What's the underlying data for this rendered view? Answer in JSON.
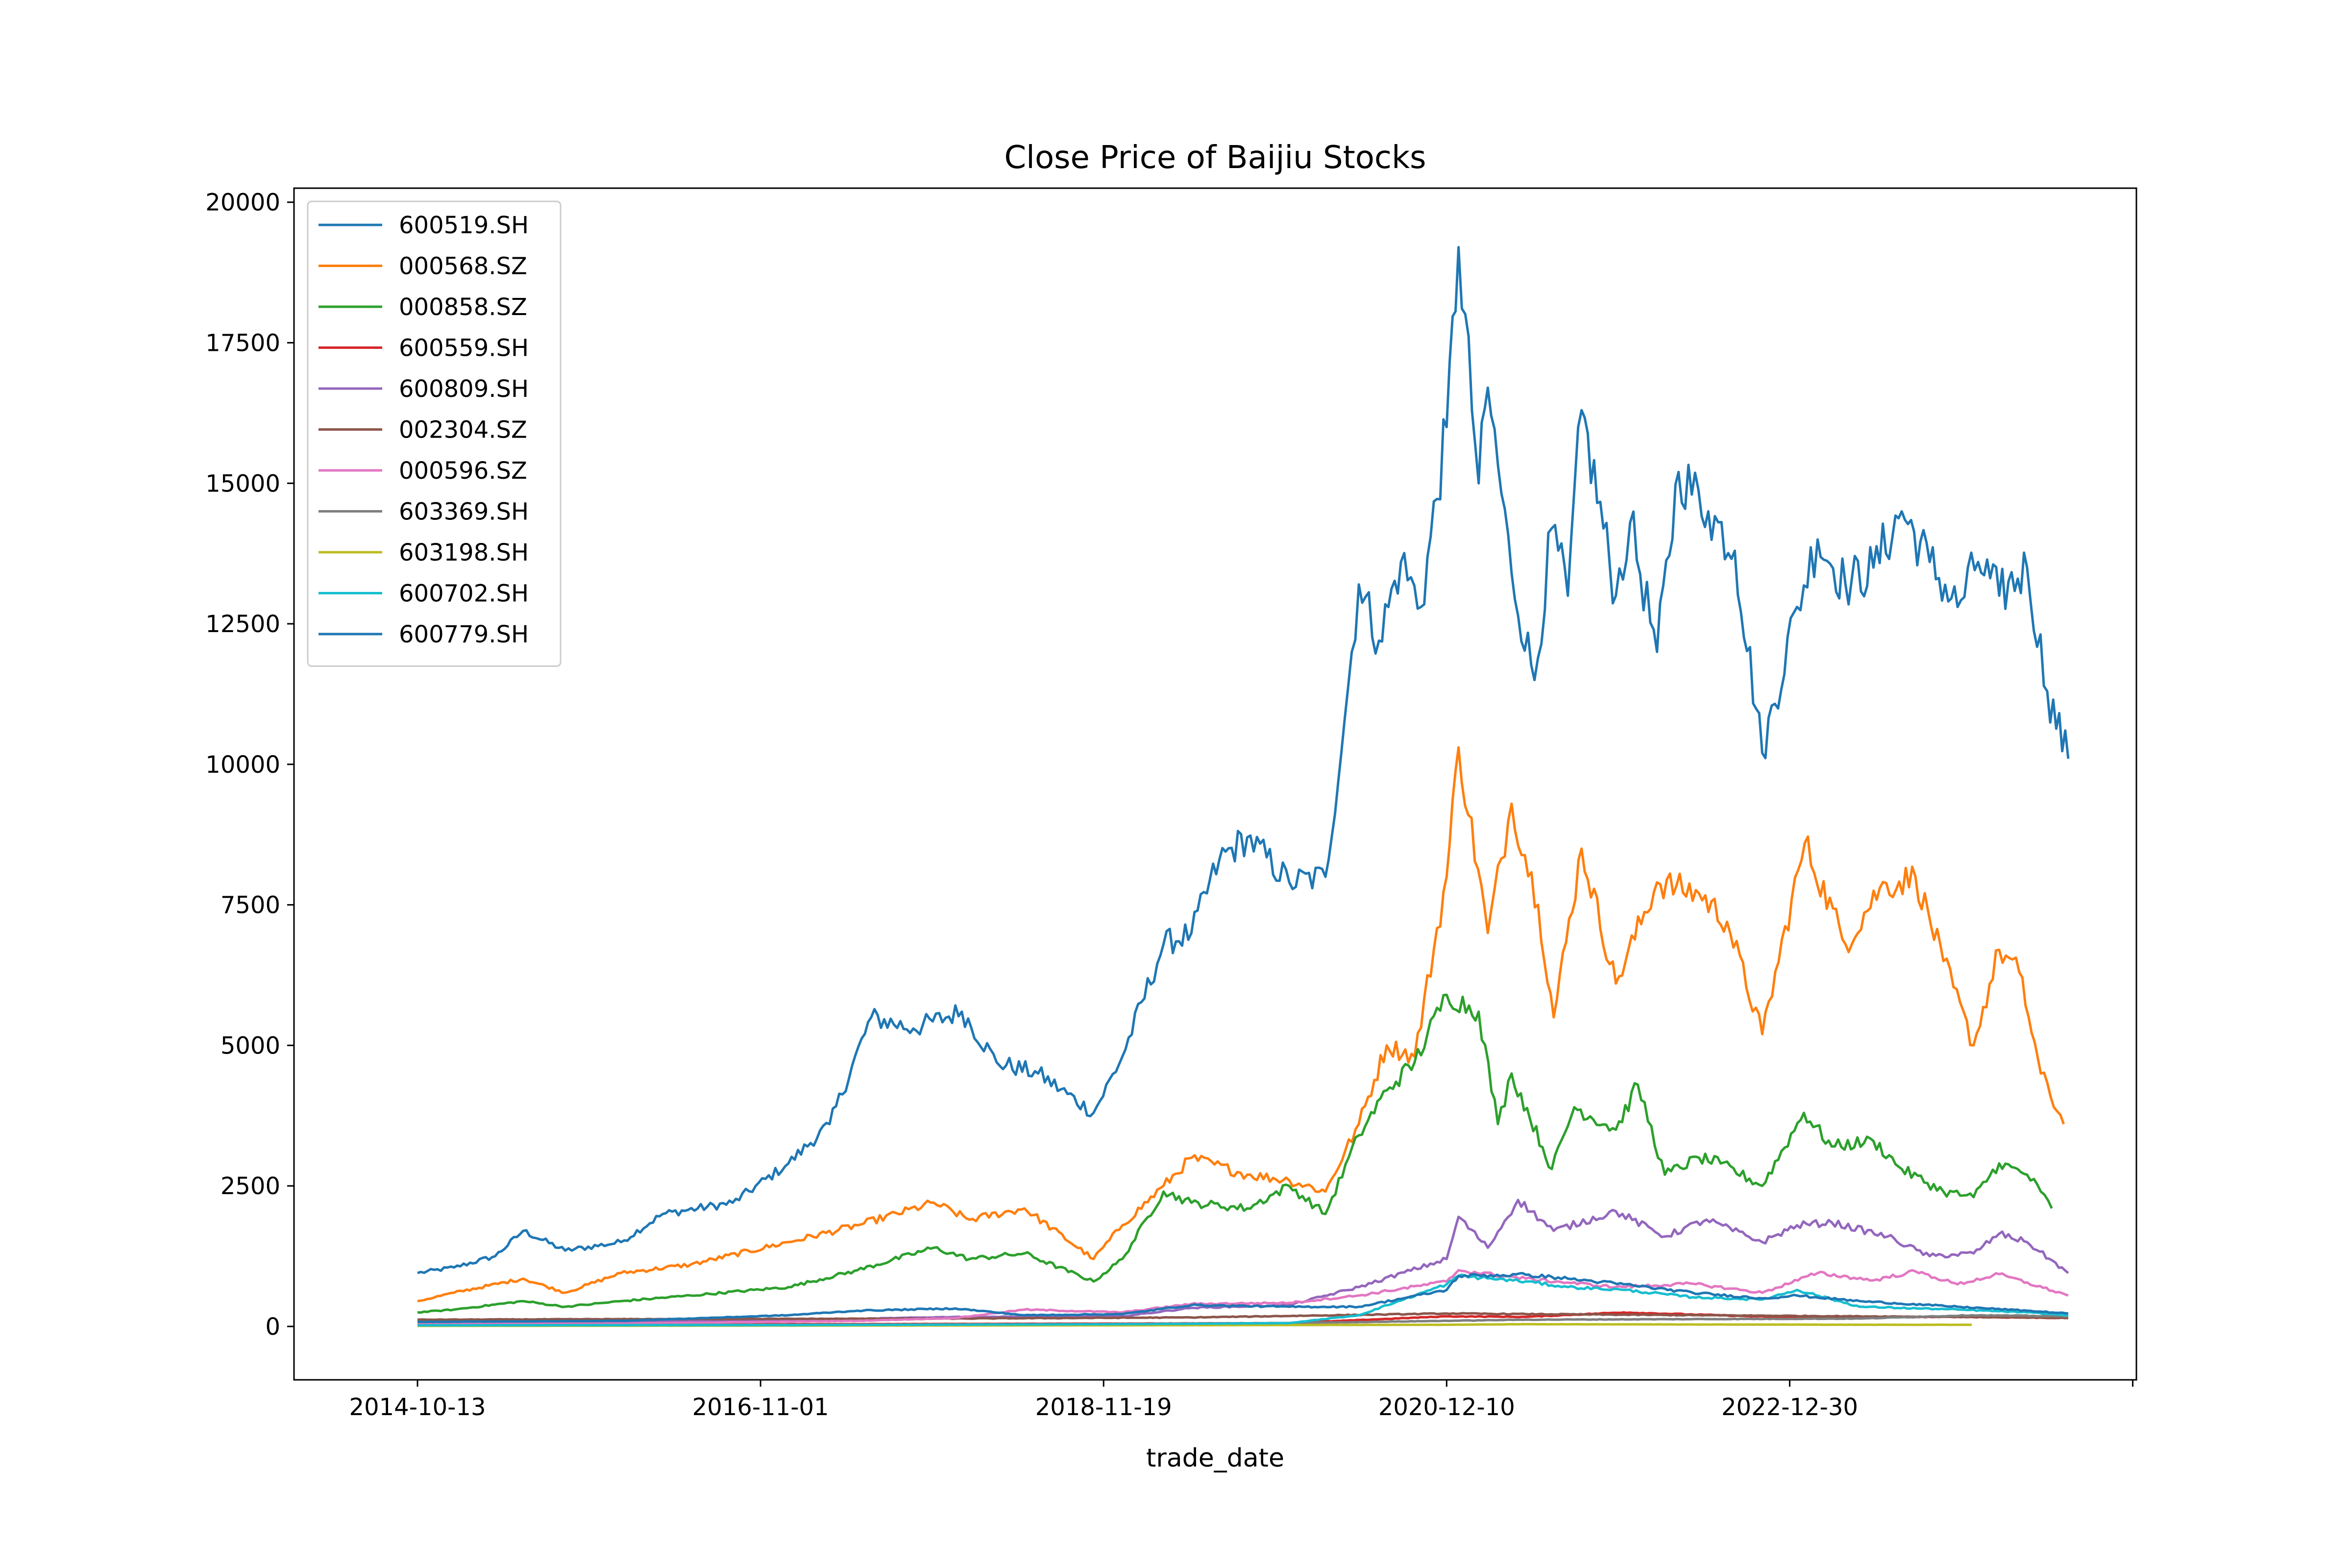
{
  "chart_data": {
    "type": "line",
    "title": "Close Price of Baijiu Stocks",
    "xlabel": "trade_date",
    "ylabel": "",
    "x_tick_labels": [
      "2014-10-13",
      "2016-11-01",
      "2018-11-19",
      "2020-12-10",
      "2022-12-30"
    ],
    "y_tick_labels": [
      "0",
      "2500",
      "5000",
      "7500",
      "10000",
      "12500",
      "15000",
      "17500",
      "20000"
    ],
    "ylim": [
      -950,
      20250
    ],
    "xlim": [
      "2014-01-16",
      "2025-01-26"
    ],
    "grid": false,
    "legend_position": "upper left",
    "colors": [
      "#1f77b4",
      "#ff7f0e",
      "#2ca02c",
      "#d62728",
      "#9467bd",
      "#8c564b",
      "#e377c2",
      "#7f7f7f",
      "#bcbd22",
      "#17becf",
      "#1f77b4"
    ],
    "series": [
      {
        "name": "600519.SH",
        "x": [
          "2014-10-13",
          "2015-01-01",
          "2015-04-01",
          "2015-06-01",
          "2015-09-01",
          "2016-01-01",
          "2016-04-01",
          "2016-09-01",
          "2017-01-01",
          "2017-04-01",
          "2017-07-01",
          "2017-10-01",
          "2018-01-15",
          "2018-04-01",
          "2018-07-01",
          "2018-10-30",
          "2019-01-01",
          "2019-04-01",
          "2019-06-01",
          "2019-08-01",
          "2019-10-01",
          "2020-01-01",
          "2020-03-20",
          "2020-05-01",
          "2020-06-01",
          "2020-07-15",
          "2020-09-01",
          "2020-10-15",
          "2020-12-10",
          "2021-01-05",
          "2021-02-18",
          "2021-03-10",
          "2021-05-01",
          "2021-06-20",
          "2021-07-28",
          "2021-09-01",
          "2021-10-01",
          "2021-12-15",
          "2022-01-15",
          "2022-03-15",
          "2022-05-01",
          "2022-07-05",
          "2022-09-01",
          "2022-10-31",
          "2023-01-15",
          "2023-03-01",
          "2023-05-01",
          "2023-07-01",
          "2023-09-01",
          "2023-11-01",
          "2024-01-01",
          "2024-02-15",
          "2024-04-01",
          "2024-06-01",
          "2024-07-15",
          "2024-08-30"
        ],
        "y": [
          950,
          1050,
          1250,
          1700,
          1350,
          1500,
          2000,
          2200,
          2900,
          3600,
          5500,
          5300,
          5600,
          4700,
          4500,
          3800,
          4800,
          6800,
          7000,
          8300,
          8700,
          7900,
          8000,
          10800,
          13200,
          12200,
          13600,
          12800,
          16000,
          19200,
          15000,
          16700,
          13400,
          11500,
          14200,
          13000,
          16300,
          13000,
          14300,
          12000,
          15200,
          14500,
          13800,
          10200,
          12800,
          14000,
          13200,
          13500,
          14500,
          13600,
          12800,
          13600,
          13000,
          13500,
          11300,
          10100
        ]
      },
      {
        "name": "000568.SZ",
        "x": [
          "2014-10-13",
          "2015-01-01",
          "2015-06-01",
          "2015-09-01",
          "2016-01-01",
          "2016-06-01",
          "2017-01-01",
          "2017-06-01",
          "2017-11-15",
          "2018-02-01",
          "2018-06-01",
          "2018-10-30",
          "2019-01-01",
          "2019-04-01",
          "2019-06-01",
          "2019-10-01",
          "2020-01-01",
          "2020-03-20",
          "2020-06-01",
          "2020-08-01",
          "2020-10-01",
          "2020-12-10",
          "2021-01-05",
          "2021-03-10",
          "2021-05-01",
          "2021-06-28",
          "2021-08-01",
          "2021-10-01",
          "2021-12-15",
          "2022-03-15",
          "2022-06-15",
          "2022-08-15",
          "2022-10-31",
          "2023-02-01",
          "2023-05-01",
          "2023-07-15",
          "2023-10-01",
          "2023-12-01",
          "2024-02-05",
          "2024-04-01",
          "2024-05-15",
          "2024-07-01",
          "2024-08-20"
        ],
        "y": [
          450,
          600,
          850,
          600,
          950,
          1100,
          1500,
          1800,
          2200,
          1900,
          2100,
          1200,
          1800,
          2500,
          3000,
          2700,
          2600,
          2400,
          3600,
          5000,
          4800,
          8000,
          10300,
          7000,
          9300,
          7500,
          5500,
          8500,
          6100,
          7900,
          7700,
          7200,
          5200,
          8600,
          6800,
          7800,
          8000,
          6500,
          5000,
          6700,
          6300,
          4500,
          3600
        ]
      },
      {
        "name": "000858.SZ",
        "x": [
          "2014-10-13",
          "2015-01-01",
          "2015-06-01",
          "2015-09-01",
          "2016-01-01",
          "2016-06-01",
          "2017-01-01",
          "2017-06-01",
          "2017-11-15",
          "2018-02-01",
          "2018-06-01",
          "2018-10-30",
          "2019-01-01",
          "2019-04-01",
          "2019-06-01",
          "2019-10-01",
          "2020-01-01",
          "2020-03-20",
          "2020-06-01",
          "2020-08-01",
          "2020-10-01",
          "2020-12-10",
          "2021-02-18",
          "2021-04-01",
          "2021-05-01",
          "2021-07-28",
          "2021-09-15",
          "2021-12-15",
          "2022-02-01",
          "2022-04-01",
          "2022-06-15",
          "2022-08-01",
          "2022-10-31",
          "2023-01-30",
          "2023-04-01",
          "2023-07-01",
          "2023-09-01",
          "2023-12-01",
          "2024-02-05",
          "2024-04-01",
          "2024-06-01",
          "2024-07-01",
          "2024-07-25"
        ],
        "y": [
          250,
          300,
          450,
          350,
          450,
          550,
          700,
          1000,
          1400,
          1200,
          1300,
          800,
          1200,
          2400,
          2200,
          2100,
          2500,
          2000,
          3400,
          4200,
          4700,
          5900,
          5600,
          3600,
          4500,
          2800,
          3900,
          3500,
          4300,
          2700,
          3000,
          2900,
          2500,
          3800,
          3200,
          3300,
          2800,
          2400,
          2300,
          2900,
          2700,
          2400,
          2100
        ]
      },
      {
        "name": "600559.SH",
        "x": [
          "2014-10-13",
          "2017-01-01",
          "2019-01-01",
          "2020-01-01",
          "2020-12-10",
          "2021-06-01",
          "2022-01-01",
          "2023-01-01",
          "2024-01-01",
          "2024-08-30"
        ],
        "y": [
          30,
          40,
          50,
          60,
          180,
          170,
          250,
          160,
          170,
          150
        ]
      },
      {
        "name": "600809.SH",
        "x": [
          "2014-10-13",
          "2016-01-01",
          "2017-01-01",
          "2018-01-01",
          "2019-01-01",
          "2019-06-01",
          "2020-01-01",
          "2020-06-01",
          "2020-12-10",
          "2021-01-05",
          "2021-03-10",
          "2021-05-15",
          "2021-08-01",
          "2021-12-15",
          "2022-04-01",
          "2022-07-01",
          "2022-10-31",
          "2023-01-15",
          "2023-04-01",
          "2023-08-01",
          "2023-11-01",
          "2024-02-05",
          "2024-04-01",
          "2024-06-01",
          "2024-08-30"
        ],
        "y": [
          80,
          90,
          110,
          170,
          180,
          330,
          380,
          700,
          1200,
          1950,
          1400,
          2250,
          1700,
          2050,
          1600,
          1900,
          1500,
          1800,
          1850,
          1600,
          1250,
          1300,
          1650,
          1500,
          950
        ]
      },
      {
        "name": "002304.SZ",
        "x": [
          "2014-10-13",
          "2016-01-01",
          "2018-01-01",
          "2019-06-01",
          "2020-12-10",
          "2021-06-01",
          "2022-06-01",
          "2023-06-01",
          "2024-01-01",
          "2024-08-30"
        ],
        "y": [
          120,
          130,
          140,
          160,
          230,
          220,
          200,
          180,
          170,
          150
        ]
      },
      {
        "name": "000596.SZ",
        "x": [
          "2014-10-13",
          "2016-01-01",
          "2017-06-01",
          "2018-01-01",
          "2018-06-01",
          "2019-01-01",
          "2019-06-01",
          "2020-01-01",
          "2020-06-01",
          "2020-12-10",
          "2021-01-05",
          "2021-06-01",
          "2021-12-15",
          "2022-06-01",
          "2022-10-31",
          "2023-03-01",
          "2023-07-01",
          "2023-10-01",
          "2024-01-01",
          "2024-04-01",
          "2024-08-30"
        ],
        "y": [
          40,
          50,
          100,
          150,
          300,
          250,
          400,
          420,
          550,
          800,
          1000,
          850,
          700,
          760,
          600,
          950,
          820,
          980,
          750,
          930,
          550
        ]
      },
      {
        "name": "603369.SH",
        "x": [
          "2014-10-13",
          "2017-01-01",
          "2019-01-01",
          "2020-01-01",
          "2020-12-10",
          "2021-06-01",
          "2022-06-01",
          "2023-06-01",
          "2024-02-01",
          "2024-08-30"
        ],
        "y": [
          20,
          30,
          40,
          60,
          100,
          120,
          130,
          140,
          200,
          180
        ]
      },
      {
        "name": "603198.SH",
        "x": [
          "2014-10-13",
          "2017-01-01",
          "2019-01-01",
          "2020-12-10",
          "2021-06-01",
          "2022-06-01",
          "2023-06-01",
          "2024-02-01"
        ],
        "y": [
          10,
          15,
          20,
          30,
          40,
          35,
          30,
          30
        ]
      },
      {
        "name": "600702.SH",
        "x": [
          "2014-10-13",
          "2017-01-01",
          "2019-01-01",
          "2020-01-01",
          "2020-06-01",
          "2020-12-10",
          "2021-01-05",
          "2021-06-01",
          "2021-09-01",
          "2022-01-01",
          "2022-06-01",
          "2022-10-31",
          "2023-01-15",
          "2023-06-01",
          "2024-01-01",
          "2024-06-01",
          "2024-08-30"
        ],
        "y": [
          20,
          25,
          40,
          60,
          200,
          750,
          900,
          800,
          700,
          650,
          520,
          480,
          650,
          350,
          300,
          250,
          200
        ]
      },
      {
        "name": "600779.SH",
        "x": [
          "2014-10-13",
          "2016-01-01",
          "2017-01-01",
          "2017-06-01",
          "2018-01-01",
          "2018-06-01",
          "2019-01-01",
          "2019-06-01",
          "2020-01-01",
          "2020-06-01",
          "2020-12-10",
          "2021-01-05",
          "2021-06-01",
          "2021-09-01",
          "2022-01-01",
          "2022-06-01",
          "2022-10-31",
          "2023-01-15",
          "2023-06-01",
          "2024-01-01",
          "2024-06-01",
          "2024-08-30"
        ],
        "y": [
          80,
          100,
          200,
          280,
          320,
          200,
          220,
          380,
          350,
          350,
          650,
          900,
          920,
          850,
          750,
          600,
          500,
          550,
          450,
          350,
          280,
          230
        ]
      }
    ]
  }
}
